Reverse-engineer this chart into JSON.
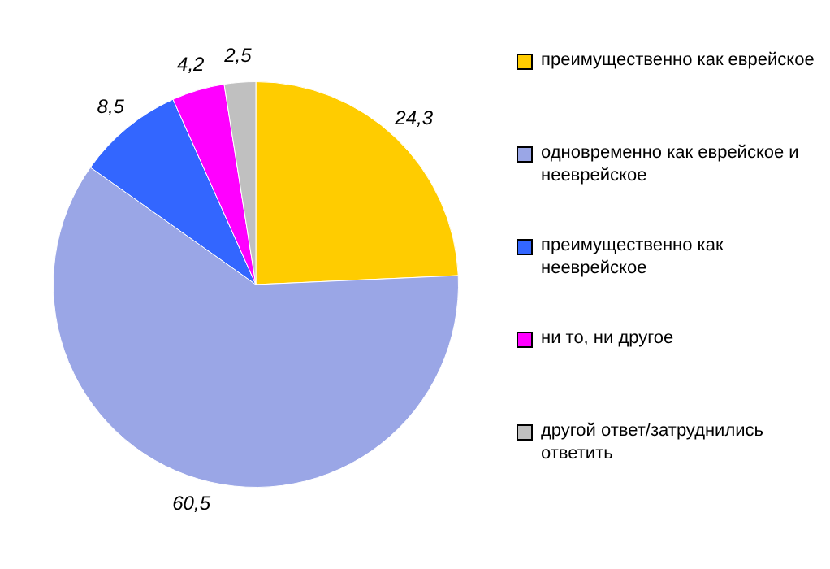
{
  "chart_data": {
    "type": "pie",
    "categories": [
      "преимущественно как еврейское",
      "одновременно как еврейское и нееврейское",
      "преимущественно как нееврейское",
      "ни то, ни другое",
      "другой ответ/затруднились ответить"
    ],
    "values": [
      24.3,
      60.5,
      8.5,
      4.2,
      2.5
    ],
    "colors": [
      "#ffcc00",
      "#9aa6e6",
      "#3366ff",
      "#ff00ff",
      "#c0c0c0"
    ],
    "value_labels": [
      "24,3",
      "60,5",
      "8,5",
      "4,2",
      "2,5"
    ],
    "legend": "right"
  }
}
